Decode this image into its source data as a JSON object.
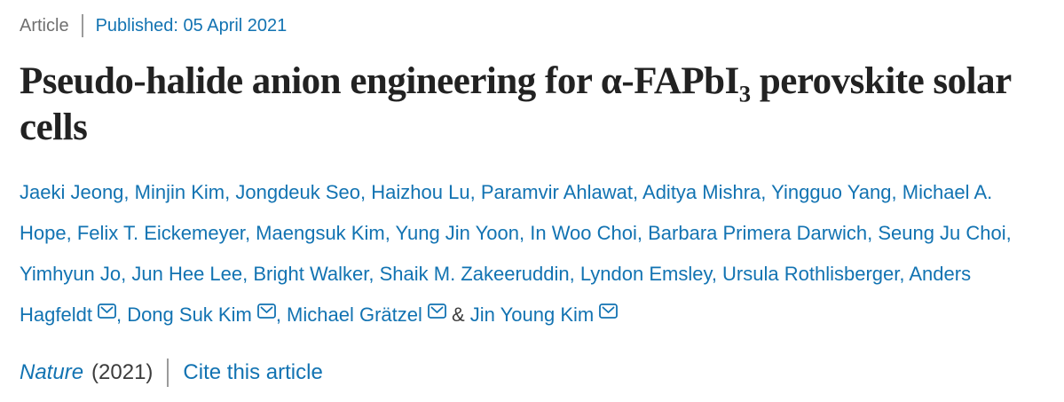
{
  "colors": {
    "link_blue": "#1273b2",
    "title_dark": "#222222",
    "meta_gray": "#6f6f6f",
    "text_dark": "#3c3c3c",
    "divider_gray": "#9b9b9b"
  },
  "meta": {
    "category": "Article",
    "published": "Published: 05 April 2021"
  },
  "title": {
    "before_sub": "Pseudo-halide anion engineering for α-FAPbI",
    "sub": "3",
    "after_sub": "perovskite solar cells"
  },
  "authors": {
    "separator": ", ",
    "last_separator": " & ",
    "email_icon": "envelope",
    "list": [
      {
        "name": "Jaeki Jeong"
      },
      {
        "name": "Minjin Kim"
      },
      {
        "name": "Jongdeuk Seo"
      },
      {
        "name": "Haizhou Lu"
      },
      {
        "name": "Paramvir Ahlawat"
      },
      {
        "name": "Aditya Mishra"
      },
      {
        "name": "Yingguo Yang"
      },
      {
        "name": "Michael A. Hope"
      },
      {
        "name": "Felix T. Eickemeyer"
      },
      {
        "name": "Maengsuk Kim"
      },
      {
        "name": "Yung Jin Yoon"
      },
      {
        "name": "In Woo Choi"
      },
      {
        "name": "Barbara Primera Darwich"
      },
      {
        "name": "Seung Ju Choi"
      },
      {
        "name": "Yimhyun Jo"
      },
      {
        "name": "Jun Hee Lee"
      },
      {
        "name": "Bright Walker"
      },
      {
        "name": "Shaik M. Zakeeruddin"
      },
      {
        "name": "Lyndon Emsley"
      },
      {
        "name": "Ursula Rothlisberger"
      },
      {
        "name": "Anders Hagfeldt",
        "email": true
      },
      {
        "name": "Dong Suk Kim",
        "email": true
      },
      {
        "name": "Michael Grätzel",
        "email": true
      },
      {
        "name": "Jin Young Kim",
        "email": true
      }
    ]
  },
  "footer": {
    "journal": "Nature",
    "year": "(2021)",
    "cite": "Cite this article"
  }
}
